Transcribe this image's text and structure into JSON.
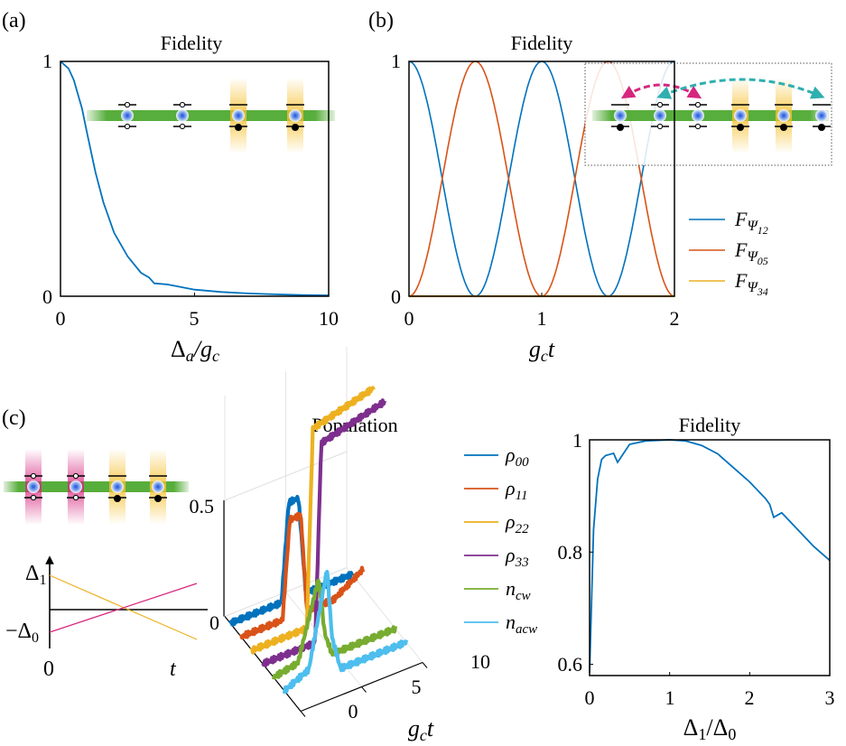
{
  "colors": {
    "c1": "#0072BD",
    "c2": "#D95319",
    "c3": "#EDB120",
    "c4": "#7E2F8E",
    "c5": "#77AC30",
    "c6": "#4DBEEE",
    "magenta": "#D6267E",
    "teal": "#2FAFB0",
    "green": "#3AA01A"
  },
  "panels": {
    "a": {
      "tag": "(a)",
      "title": "Fidelity",
      "xlabel": "Δa/gc",
      "xlabel_parts": {
        "delta": "Δ",
        "sub1": "a",
        "slash": "/g",
        "sub2": "c"
      },
      "xticks": [
        "0",
        "5",
        "10"
      ],
      "yticks": [
        "0",
        "1"
      ]
    },
    "b": {
      "tag": "(b)",
      "title": "Fidelity",
      "xlabel": "gct",
      "xlabel_parts": {
        "g": "g",
        "sub": "c",
        "t": "t"
      },
      "xticks": [
        "0",
        "1",
        "2"
      ],
      "yticks": [
        "0",
        "1"
      ],
      "legend": [
        {
          "name": "FΨ12",
          "base": "F",
          "sub": "Ψ",
          "subsub": "12",
          "color": "#0072BD"
        },
        {
          "name": "FΨ05",
          "base": "F",
          "sub": "Ψ",
          "subsub": "05",
          "color": "#D95319"
        },
        {
          "name": "FΨ34",
          "base": "F",
          "sub": "Ψ",
          "subsub": "34",
          "color": "#EDB120"
        }
      ]
    },
    "c": {
      "tag": "(c)",
      "schematic": {
        "delta1": "Δ1",
        "d1_base": "Δ",
        "d1_sub": "1",
        "minus_delta0": "−Δ0",
        "d0_base": "−Δ",
        "d0_sub": "0",
        "zero": "0",
        "t": "t"
      },
      "population": {
        "title": "Population",
        "z_ticks": [
          "0",
          "0.5"
        ],
        "gct_ticks": [
          "0",
          "5",
          "10"
        ],
        "xlabel": "gct",
        "xlabel_parts": {
          "g": "g",
          "sub": "c",
          "t": "t"
        },
        "legend": [
          {
            "name": "ρ00",
            "base": "ρ",
            "sub": "00",
            "color": "#0072BD"
          },
          {
            "name": "ρ11",
            "base": "ρ",
            "sub": "11",
            "color": "#D95319"
          },
          {
            "name": "ρ22",
            "base": "ρ",
            "sub": "22",
            "color": "#EDB120"
          },
          {
            "name": "ρ33",
            "base": "ρ",
            "sub": "33",
            "color": "#7E2F8E"
          },
          {
            "name": "ncw",
            "base": "n",
            "sub": "cw",
            "color": "#77AC30"
          },
          {
            "name": "nacw",
            "base": "n",
            "sub": "acw",
            "color": "#4DBEEE"
          }
        ]
      },
      "fidelity": {
        "title": "Fidelity",
        "xlabel": "Δ1/Δ0",
        "xlabel_parts": {
          "d": "Δ",
          "s1": "1",
          "slash": "/Δ",
          "s0": "0"
        },
        "xticks": [
          "0",
          "1",
          "2",
          "3"
        ],
        "yticks": [
          "0.6",
          "0.8",
          "1"
        ]
      }
    }
  },
  "chart_data": [
    {
      "type": "line",
      "title": "Fidelity",
      "xlabel": "Δa/gc",
      "ylabel": "",
      "xlim": [
        0,
        10
      ],
      "ylim": [
        0,
        1
      ],
      "series": [
        {
          "name": "Fidelity",
          "color": "#0072BD",
          "x": [
            0,
            0.3,
            0.5,
            0.8,
            1.0,
            1.3,
            1.6,
            2.0,
            2.5,
            3.0,
            3.3,
            3.5,
            4.0,
            5.0,
            6.0,
            7.0,
            8.0,
            9.0,
            10.0
          ],
          "y": [
            1.0,
            0.97,
            0.92,
            0.8,
            0.69,
            0.53,
            0.4,
            0.27,
            0.17,
            0.1,
            0.08,
            0.055,
            0.05,
            0.028,
            0.018,
            0.012,
            0.008,
            0.005,
            0.004
          ]
        }
      ]
    },
    {
      "type": "line",
      "title": "Fidelity",
      "xlabel": "gct",
      "ylabel": "",
      "xlim": [
        0,
        2
      ],
      "ylim": [
        0,
        1
      ],
      "series": [
        {
          "name": "FΨ12",
          "color": "#0072BD",
          "formula": "cos^2(pi*x)",
          "x": [
            0,
            0.25,
            0.5,
            0.75,
            1.0,
            1.25,
            1.5,
            1.75,
            2.0
          ],
          "y": [
            1,
            0.5,
            0,
            0.5,
            1,
            0.5,
            0,
            0.5,
            1
          ]
        },
        {
          "name": "FΨ05",
          "color": "#D95319",
          "formula": "sin^2(pi*x)",
          "x": [
            0,
            0.25,
            0.5,
            0.75,
            1.0,
            1.25,
            1.5,
            1.75,
            2.0
          ],
          "y": [
            0,
            0.5,
            1,
            0.5,
            0,
            0.5,
            1,
            0.5,
            0
          ]
        },
        {
          "name": "FΨ34",
          "color": "#EDB120",
          "x": [
            0,
            2.0
          ],
          "y": [
            0,
            0
          ]
        }
      ]
    },
    {
      "type": "line",
      "title": "Population",
      "xlabel": "gct",
      "zlabel": "",
      "xlim": [
        0,
        10
      ],
      "zlim": [
        0,
        0.5
      ],
      "series": [
        {
          "name": "ρ00",
          "color": "#0072BD",
          "x": [
            0,
            4.2,
            4.8,
            5.6,
            6.2,
            10
          ],
          "y": [
            0,
            0,
            0.42,
            0.42,
            0,
            0
          ]
        },
        {
          "name": "ρ11",
          "color": "#D95319",
          "x": [
            0,
            3.4,
            4.0,
            4.9,
            5.4,
            7.6,
            10
          ],
          "y": [
            0,
            0,
            0.42,
            0.42,
            0,
            0,
            0.08
          ]
        },
        {
          "name": "ρ22",
          "color": "#EDB120",
          "x": [
            0,
            4.5,
            5.0,
            10
          ],
          "y": [
            0,
            0,
            0.85,
            0.92
          ]
        },
        {
          "name": "ρ33",
          "color": "#7E2F8E",
          "x": [
            0,
            4.3,
            4.8,
            10
          ],
          "y": [
            0,
            0,
            0.85,
            0.92
          ]
        },
        {
          "name": "ncw",
          "color": "#77AC30",
          "x": [
            0,
            2.0,
            3.7,
            4.2,
            4.8,
            10
          ],
          "y": [
            0,
            0.02,
            0.35,
            0.1,
            0,
            0
          ]
        },
        {
          "name": "nacw",
          "color": "#4DBEEE",
          "x": [
            0,
            2.0,
            3.5,
            3.9,
            4.6,
            10
          ],
          "y": [
            0,
            0.05,
            0.45,
            0.15,
            0,
            0
          ]
        }
      ]
    },
    {
      "type": "line",
      "title": "Fidelity",
      "xlabel": "Δ1/Δ0",
      "ylabel": "",
      "xlim": [
        0,
        3
      ],
      "ylim": [
        0.58,
        1.0
      ],
      "series": [
        {
          "name": "Fidelity",
          "color": "#0072BD",
          "x": [
            0,
            0.05,
            0.1,
            0.15,
            0.2,
            0.3,
            0.35,
            0.5,
            0.7,
            1.0,
            1.2,
            1.4,
            1.6,
            1.8,
            2.0,
            2.2,
            2.25,
            2.3,
            2.4,
            2.6,
            2.8,
            3.0
          ],
          "y": [
            0.585,
            0.84,
            0.93,
            0.965,
            0.972,
            0.976,
            0.96,
            0.992,
            0.998,
            1.0,
            0.998,
            0.99,
            0.975,
            0.95,
            0.925,
            0.895,
            0.885,
            0.862,
            0.87,
            0.84,
            0.81,
            0.785
          ]
        }
      ]
    }
  ]
}
